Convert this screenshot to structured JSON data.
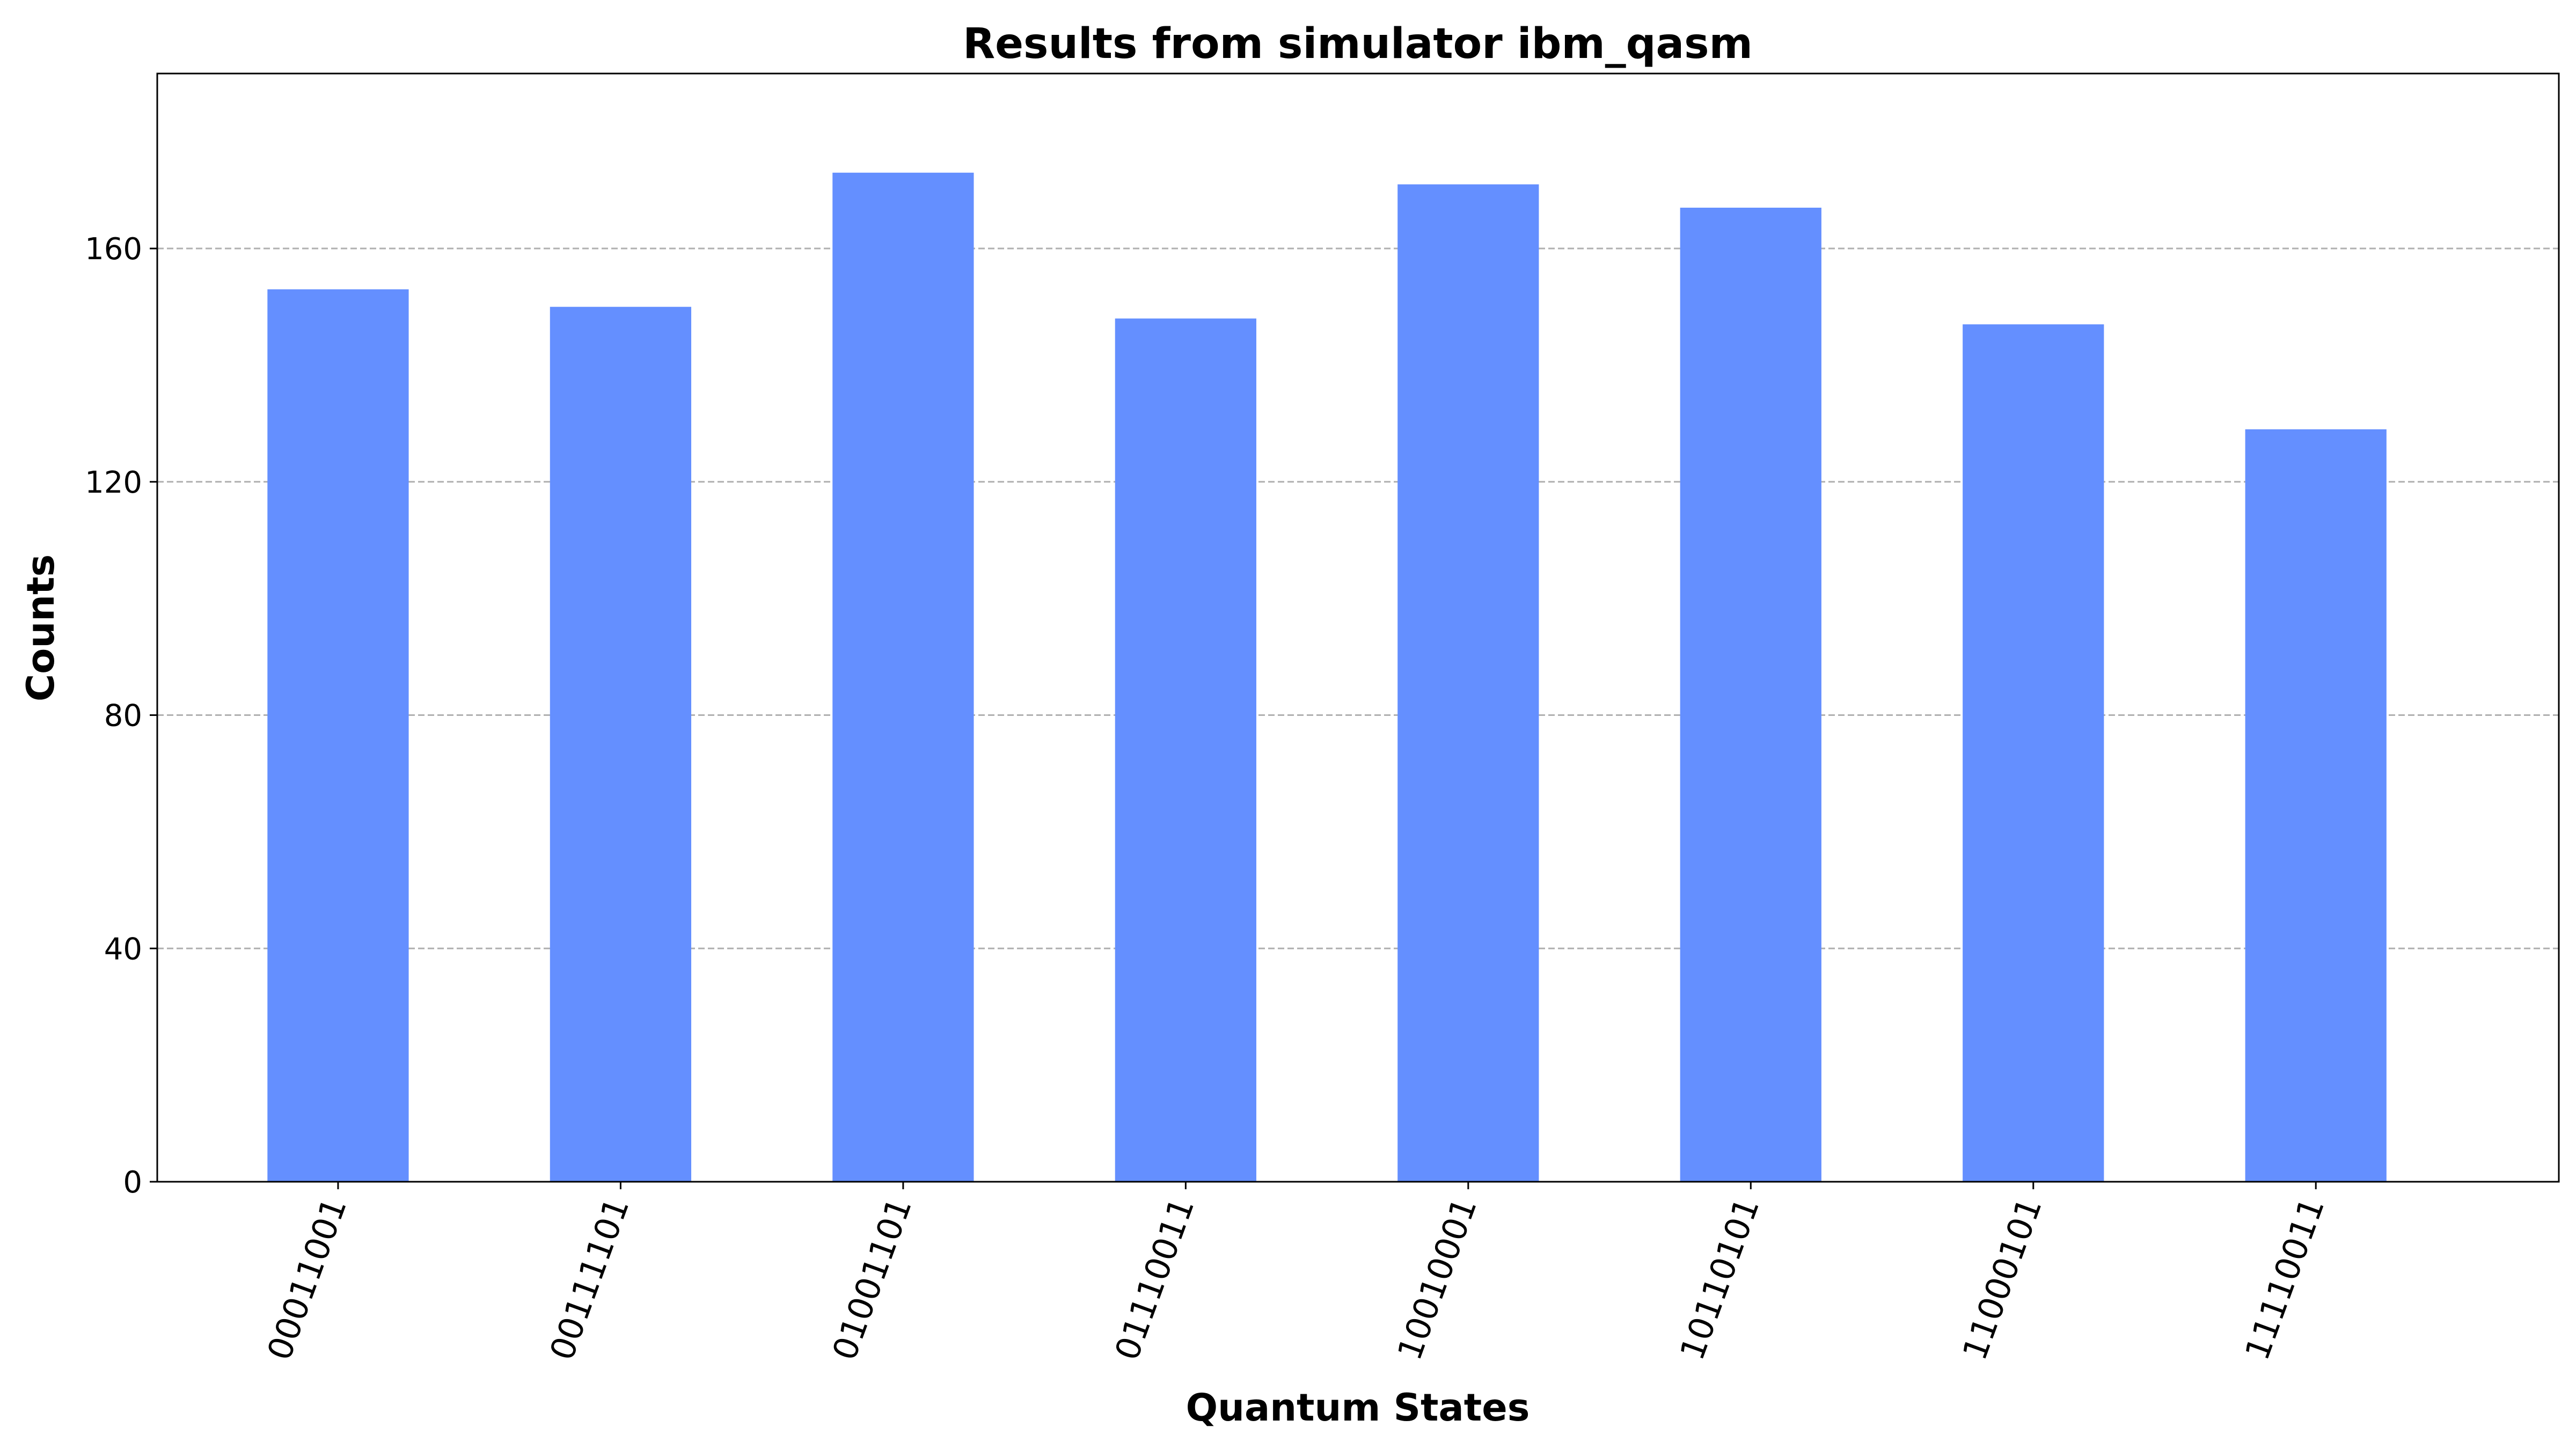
{
  "chart_data": {
    "type": "bar",
    "title": "Results from simulator ibm_qasm",
    "xlabel": "Quantum States",
    "ylabel": "Counts",
    "categories": [
      "00011001",
      "00111101",
      "01001101",
      "01110011",
      "10010001",
      "10110101",
      "11000101",
      "11110011"
    ],
    "values": [
      153,
      150,
      173,
      148,
      171,
      167,
      147,
      129
    ],
    "ylim": [
      0,
      190
    ],
    "yticks": [
      0,
      40,
      80,
      120,
      160
    ],
    "ytick_labels": [
      "0",
      "40",
      "80",
      "120",
      "160"
    ],
    "grid": "y-dashed",
    "bar_color": "#648fff",
    "xtick_rotation": "70"
  }
}
